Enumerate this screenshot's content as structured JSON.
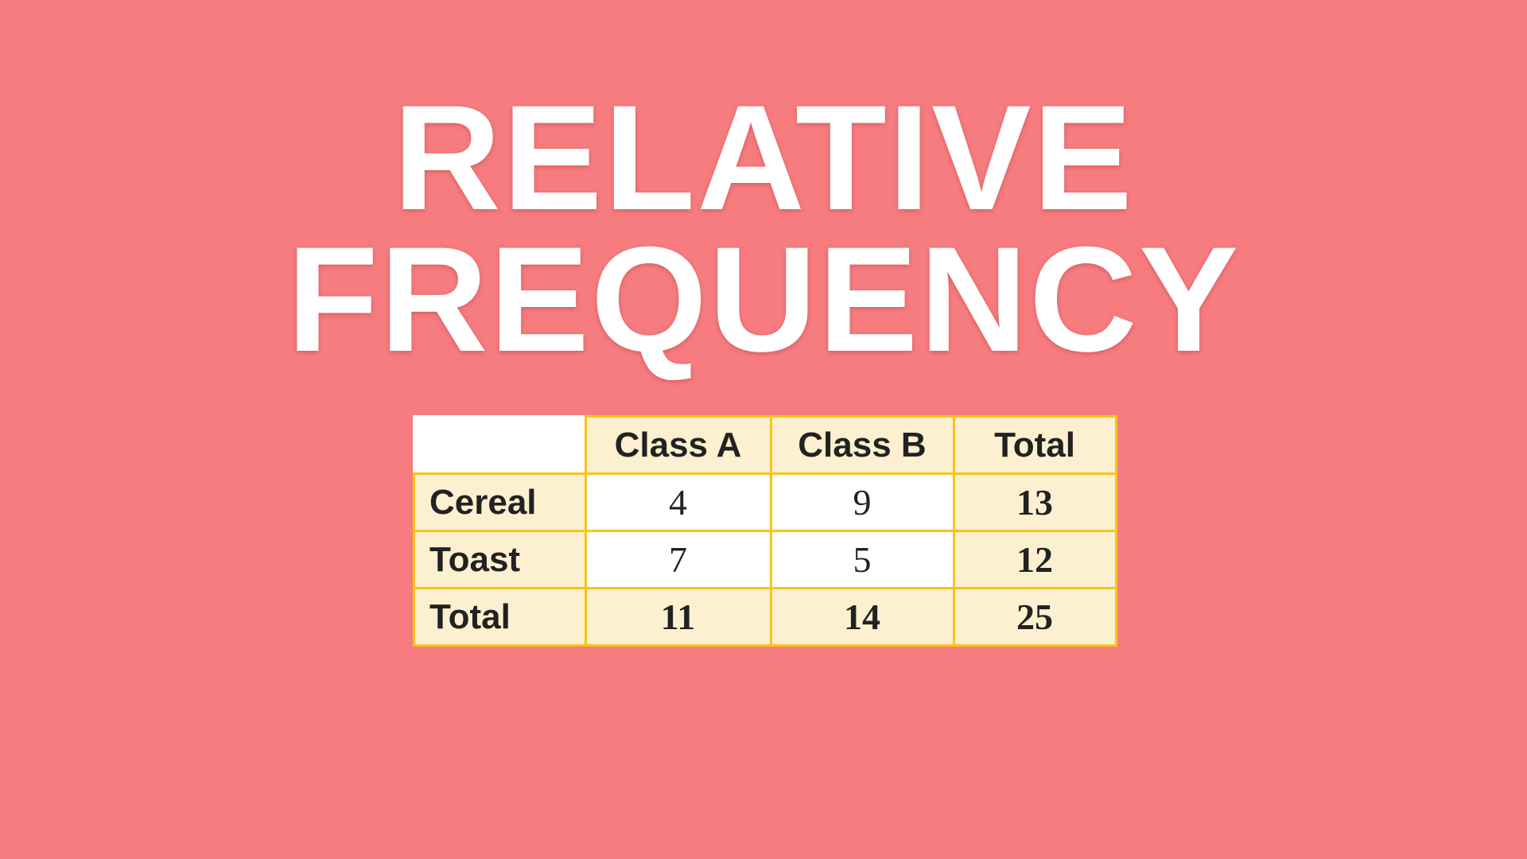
{
  "title": {
    "line1": "RELATIVE",
    "line2": "FREQUENCY"
  },
  "table": {
    "columns": [
      "Class A",
      "Class B",
      "Total"
    ],
    "rows": [
      {
        "label": "Cereal",
        "values": [
          4,
          9,
          13
        ]
      },
      {
        "label": "Toast",
        "values": [
          7,
          5,
          12
        ]
      },
      {
        "label": "Total",
        "values": [
          11,
          14,
          25
        ]
      }
    ]
  }
}
